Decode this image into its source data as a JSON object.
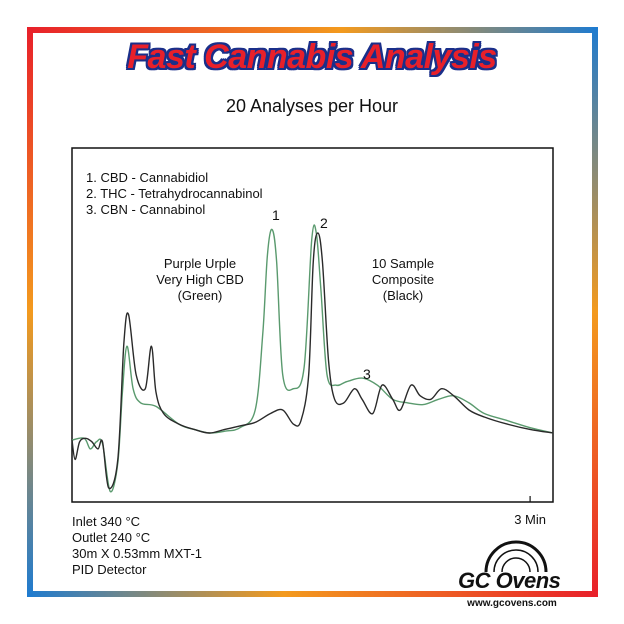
{
  "header": {
    "title": "Fast Cannabis Analysis",
    "subtitle": "20 Analyses per Hour"
  },
  "legend": [
    "1. CBD - Cannabidiol",
    "2. THC - Tetrahydrocannabinol",
    "3. CBN - Cannabinol"
  ],
  "annotations": {
    "green_sample": [
      "Purple Urple",
      "Very High CBD",
      "(Green)"
    ],
    "black_sample": [
      "10 Sample",
      "Composite",
      "(Black)"
    ],
    "peak_1": "1",
    "peak_2": "2",
    "peak_3": "3"
  },
  "conditions": [
    "Inlet 340 °C",
    "Outlet 240 °C",
    "30m X 0.53mm MXT-1",
    "PID Detector"
  ],
  "logo": {
    "brand": "GC Ovens",
    "url": "www.gcovens.com"
  },
  "colors": {
    "green_trace": "#5a9a6e",
    "black_trace": "#2a2a2a",
    "title_red": "#e8202a",
    "title_outline": "#1a2f8a",
    "frame_red": "#e8202a",
    "frame_orange": "#f39a1e",
    "frame_blue": "#1e7bd0"
  },
  "chart_data": {
    "type": "line",
    "title": "",
    "xlabel": "",
    "ylabel": "",
    "x_tick_labels": [
      "3 Min"
    ],
    "xlim": [
      0,
      3.15
    ],
    "ylim": [
      0,
      100
    ],
    "grid": false,
    "series": [
      {
        "name": "Purple Urple Very High CBD (Green)",
        "color": "#5a9a6e",
        "points": [
          [
            0.0,
            17.5
          ],
          [
            0.08,
            18
          ],
          [
            0.12,
            15
          ],
          [
            0.16,
            17
          ],
          [
            0.2,
            16.5
          ],
          [
            0.25,
            3
          ],
          [
            0.3,
            11
          ],
          [
            0.33,
            31
          ],
          [
            0.36,
            44
          ],
          [
            0.4,
            32
          ],
          [
            0.45,
            28
          ],
          [
            0.55,
            27
          ],
          [
            0.7,
            22
          ],
          [
            0.8,
            20.5
          ],
          [
            0.9,
            19.5
          ],
          [
            1.0,
            20
          ],
          [
            1.1,
            21
          ],
          [
            1.2,
            26
          ],
          [
            1.25,
            48
          ],
          [
            1.28,
            70
          ],
          [
            1.31,
            77
          ],
          [
            1.34,
            68
          ],
          [
            1.38,
            36
          ],
          [
            1.45,
            32
          ],
          [
            1.52,
            38
          ],
          [
            1.57,
            74
          ],
          [
            1.6,
            76
          ],
          [
            1.63,
            60
          ],
          [
            1.67,
            36
          ],
          [
            1.73,
            33
          ],
          [
            1.8,
            34
          ],
          [
            1.9,
            35
          ],
          [
            2.0,
            33
          ],
          [
            2.1,
            29
          ],
          [
            2.2,
            28
          ],
          [
            2.3,
            27.5
          ],
          [
            2.4,
            29
          ],
          [
            2.5,
            30
          ],
          [
            2.6,
            28
          ],
          [
            2.7,
            25
          ],
          [
            2.85,
            23
          ],
          [
            3.0,
            21
          ],
          [
            3.15,
            19.5
          ]
        ]
      },
      {
        "name": "10 Sample Composite (Black)",
        "color": "#2a2a2a",
        "points": [
          [
            0.0,
            17.5
          ],
          [
            0.02,
            12
          ],
          [
            0.05,
            17
          ],
          [
            0.09,
            18
          ],
          [
            0.13,
            17
          ],
          [
            0.17,
            15
          ],
          [
            0.2,
            17
          ],
          [
            0.24,
            4
          ],
          [
            0.3,
            12
          ],
          [
            0.34,
            45
          ],
          [
            0.37,
            53
          ],
          [
            0.42,
            36
          ],
          [
            0.48,
            32
          ],
          [
            0.52,
            44
          ],
          [
            0.55,
            31
          ],
          [
            0.6,
            25
          ],
          [
            0.7,
            22
          ],
          [
            0.8,
            20.5
          ],
          [
            0.9,
            19.5
          ],
          [
            1.0,
            20.5
          ],
          [
            1.1,
            21.5
          ],
          [
            1.2,
            22.5
          ],
          [
            1.3,
            25
          ],
          [
            1.38,
            26
          ],
          [
            1.45,
            22
          ],
          [
            1.5,
            23
          ],
          [
            1.55,
            36
          ],
          [
            1.58,
            68
          ],
          [
            1.61,
            76
          ],
          [
            1.64,
            68
          ],
          [
            1.68,
            40
          ],
          [
            1.72,
            29
          ],
          [
            1.78,
            28
          ],
          [
            1.85,
            32
          ],
          [
            1.9,
            29
          ],
          [
            1.97,
            25
          ],
          [
            2.03,
            33
          ],
          [
            2.1,
            29
          ],
          [
            2.15,
            26
          ],
          [
            2.22,
            33
          ],
          [
            2.28,
            30
          ],
          [
            2.35,
            29
          ],
          [
            2.42,
            32
          ],
          [
            2.5,
            30
          ],
          [
            2.6,
            26
          ],
          [
            2.7,
            24
          ],
          [
            2.85,
            22
          ],
          [
            3.0,
            20.5
          ],
          [
            3.15,
            19.5
          ]
        ]
      }
    ],
    "peaks": [
      {
        "label": "1",
        "x": 1.31,
        "y": 77,
        "compound": "CBD - Cannabidiol"
      },
      {
        "label": "2",
        "x": 1.61,
        "y": 76,
        "compound": "THC - Tetrahydrocannabinol"
      },
      {
        "label": "3",
        "x": 1.97,
        "y": 33,
        "compound": "CBN - Cannabinol"
      }
    ]
  }
}
